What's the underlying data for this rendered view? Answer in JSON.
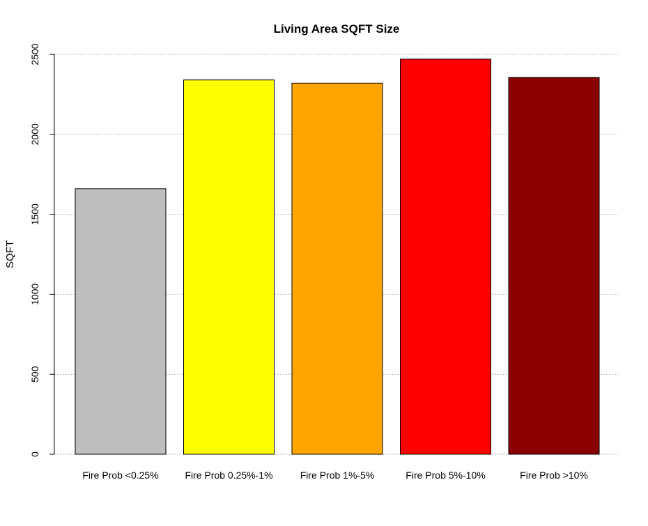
{
  "chart_data": {
    "type": "bar",
    "title": "Living Area SQFT Size",
    "xlabel": "",
    "ylabel": "SQFT",
    "categories": [
      "Fire Prob <0.25%",
      "Fire Prob 0.25%-1%",
      "Fire Prob 1%-5%",
      "Fire Prob 5%-10%",
      "Fire Prob >10%"
    ],
    "values": [
      1660,
      2340,
      2320,
      2470,
      2355
    ],
    "colors": [
      "#bebebe",
      "#ffff00",
      "#ffa500",
      "#ff0000",
      "#8b0000"
    ],
    "ylim": [
      0,
      2500
    ],
    "yticks": [
      0,
      500,
      1000,
      1500,
      2000,
      2500
    ],
    "ytick_labels": [
      "0",
      "500",
      "1000",
      "1500",
      "2000",
      "2500"
    ],
    "grid": "horizontal dotted",
    "legend": "none"
  }
}
